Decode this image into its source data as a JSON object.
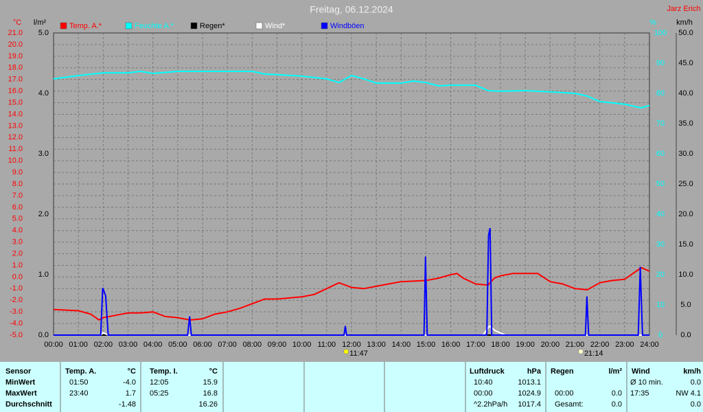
{
  "chart_data": {
    "type": "line",
    "title": "Freitag, 06.12.2024",
    "author": "Jarz Erich",
    "ylabel": "°C",
    "y2label": "l/m²",
    "y3label": "%",
    "y4label": "km/h",
    "xlim": [
      0,
      24
    ],
    "xticks": [
      {
        "value": 0,
        "label": "00:00"
      },
      {
        "value": 1,
        "label": "01:00"
      },
      {
        "value": 2,
        "label": "02:00"
      },
      {
        "value": 3,
        "label": "03:00"
      },
      {
        "value": 4,
        "label": "04:00"
      },
      {
        "value": 5,
        "label": "05:00"
      },
      {
        "value": 6,
        "label": "06:00"
      },
      {
        "value": 7,
        "label": "07:00"
      },
      {
        "value": 8,
        "label": "08:00"
      },
      {
        "value": 9,
        "label": "09:00"
      },
      {
        "value": 10,
        "label": "10:00"
      },
      {
        "value": 11,
        "label": "11:00"
      },
      {
        "value": 12,
        "label": "12:00"
      },
      {
        "value": 13,
        "label": "13:00"
      },
      {
        "value": 14,
        "label": "14:00"
      },
      {
        "value": 15,
        "label": "15:00"
      },
      {
        "value": 16,
        "label": "16:00"
      },
      {
        "value": 17,
        "label": "17:00"
      },
      {
        "value": 18,
        "label": "18:00"
      },
      {
        "value": 19,
        "label": "19:00"
      },
      {
        "value": 20,
        "label": "20:00"
      },
      {
        "value": 21,
        "label": "21:00"
      },
      {
        "value": 22,
        "label": "22:00"
      },
      {
        "value": 23,
        "label": "23:00"
      },
      {
        "value": 24,
        "label": "24:00"
      }
    ],
    "ylim": [
      -5,
      21
    ],
    "yticks": [
      {
        "value": 21,
        "label": "21.0"
      },
      {
        "value": 20,
        "label": "20.0"
      },
      {
        "value": 19,
        "label": "19.0"
      },
      {
        "value": 18,
        "label": "18.0"
      },
      {
        "value": 17,
        "label": "17.0"
      },
      {
        "value": 16,
        "label": "16.0"
      },
      {
        "value": 15,
        "label": "15.0"
      },
      {
        "value": 14,
        "label": "14.0"
      },
      {
        "value": 13,
        "label": "13.0"
      },
      {
        "value": 12,
        "label": "12.0"
      },
      {
        "value": 11,
        "label": "11.0"
      },
      {
        "value": 10,
        "label": "10.0"
      },
      {
        "value": 9,
        "label": "9.0"
      },
      {
        "value": 8,
        "label": "8.0"
      },
      {
        "value": 7,
        "label": "7.0"
      },
      {
        "value": 6,
        "label": "6.0"
      },
      {
        "value": 5,
        "label": "5.0"
      },
      {
        "value": 4,
        "label": "4.0"
      },
      {
        "value": 3,
        "label": "3.0"
      },
      {
        "value": 2,
        "label": "2.0"
      },
      {
        "value": 1,
        "label": "1.0"
      },
      {
        "value": 0,
        "label": "0.0"
      },
      {
        "value": -1,
        "label": "-1.0"
      },
      {
        "value": -2,
        "label": "-2.0"
      },
      {
        "value": -3,
        "label": "-3.0"
      },
      {
        "value": -4,
        "label": "-4.0"
      },
      {
        "value": -5,
        "label": "-5.0"
      }
    ],
    "y2lim": [
      0,
      5
    ],
    "y2ticks": [
      {
        "value": 5,
        "label": "5.0"
      },
      {
        "value": 4,
        "label": "4.0"
      },
      {
        "value": 3,
        "label": "3.0"
      },
      {
        "value": 2,
        "label": "2.0"
      },
      {
        "value": 1,
        "label": "1.0"
      },
      {
        "value": 0,
        "label": "0.0"
      }
    ],
    "y3lim": [
      0,
      100
    ],
    "y3ticks": [
      100,
      90,
      80,
      70,
      60,
      50,
      40,
      30,
      20,
      10,
      0
    ],
    "y4lim": [
      0,
      50
    ],
    "y4ticks": [
      {
        "value": 50,
        "label": "50.0"
      },
      {
        "value": 45,
        "label": "45.0"
      },
      {
        "value": 40,
        "label": "40.0"
      },
      {
        "value": 35,
        "label": "35.0"
      },
      {
        "value": 30,
        "label": "30.0"
      },
      {
        "value": 25,
        "label": "25.0"
      },
      {
        "value": 20,
        "label": "20.0"
      },
      {
        "value": 15,
        "label": "15.0"
      },
      {
        "value": 10,
        "label": "10.0"
      },
      {
        "value": 5,
        "label": "5.0"
      },
      {
        "value": 0,
        "label": "0.0"
      }
    ],
    "grid": true,
    "series": [
      {
        "name": "Temp. A.*",
        "color": "#ff0000",
        "axis": "y",
        "x": [
          0,
          1,
          1.5,
          1.83,
          2,
          2.5,
          3,
          3.5,
          4,
          4.5,
          5,
          5.5,
          6,
          6.5,
          7,
          7.5,
          8,
          8.5,
          9,
          10,
          10.5,
          11,
          11.5,
          12,
          12.5,
          13,
          13.5,
          14,
          15,
          15.5,
          16,
          16.25,
          16.5,
          17,
          17.5,
          17.75,
          18,
          18.5,
          19,
          19.5,
          20,
          20.5,
          21,
          21.5,
          22,
          22.5,
          23,
          23.67,
          24
        ],
        "values": [
          -2.8,
          -2.9,
          -3.2,
          -3.7,
          -3.5,
          -3.3,
          -3.1,
          -3.1,
          -3.0,
          -3.4,
          -3.5,
          -3.7,
          -3.6,
          -3.2,
          -3.0,
          -2.7,
          -2.3,
          -1.9,
          -1.9,
          -1.7,
          -1.5,
          -1.0,
          -0.5,
          -0.9,
          -1.0,
          -0.8,
          -0.6,
          -0.4,
          -0.3,
          -0.1,
          0.2,
          0.3,
          -0.1,
          -0.6,
          -0.7,
          -0.1,
          0.1,
          0.3,
          0.3,
          0.3,
          -0.4,
          -0.6,
          -1.0,
          -1.1,
          -0.5,
          -0.3,
          -0.2,
          0.8,
          0.5
        ]
      },
      {
        "name": "Feuchte A.*",
        "color": "#00ffff",
        "axis": "y3",
        "x": [
          0,
          1,
          2,
          3,
          3.5,
          4,
          5,
          6,
          7,
          8,
          8.5,
          9,
          10,
          11,
          11.5,
          12,
          12.5,
          13,
          14,
          14.5,
          15,
          15.5,
          16,
          17,
          17.5,
          18,
          19,
          20,
          21,
          21.5,
          22,
          23,
          23.67,
          24
        ],
        "values": [
          84.8,
          85.9,
          86.8,
          86.8,
          87.3,
          86.6,
          87.3,
          87.3,
          87.3,
          87.3,
          86.4,
          86.2,
          85.7,
          84.8,
          83.6,
          85.9,
          84.8,
          83.4,
          83.4,
          84.1,
          83.6,
          82.5,
          82.7,
          82.7,
          80.9,
          80.7,
          80.9,
          80.5,
          80.0,
          79.1,
          77.3,
          76.4,
          75.2,
          76.0
        ]
      },
      {
        "name": "Regen*",
        "color": "#000000",
        "axis": "y2",
        "x": [
          0,
          24
        ],
        "values": [
          0,
          0
        ]
      },
      {
        "name": "Wind*",
        "color": "#ffffff",
        "axis": "y4",
        "x": [
          0,
          1.9,
          2.0,
          2.2,
          17.3,
          17.55,
          17.8,
          18.2,
          24
        ],
        "values": [
          0,
          0,
          0.4,
          0,
          0,
          1.5,
          0.7,
          0,
          0
        ]
      },
      {
        "name": "Windböen",
        "color": "#0000ff",
        "axis": "y4",
        "x": [
          0,
          1.9,
          1.98,
          2.1,
          2.2,
          5.4,
          5.48,
          5.55,
          11.7,
          11.75,
          11.8,
          14.92,
          14.98,
          15.05,
          17.45,
          17.52,
          17.58,
          17.65,
          21.42,
          21.48,
          21.55,
          23.55,
          23.63,
          23.72,
          24
        ],
        "values": [
          0,
          0,
          7.8,
          6.5,
          0,
          0,
          3.1,
          0,
          0,
          1.5,
          0,
          0,
          13.0,
          0,
          0,
          16.5,
          17.7,
          0,
          0,
          6.4,
          0,
          0,
          11.3,
          0,
          0
        ]
      }
    ],
    "annotations": [
      "11:47",
      "21:14"
    ]
  },
  "table": {
    "left": {
      "header": [
        "Sensor",
        "Temp. A.",
        "°C",
        "Temp. I.",
        "°C"
      ],
      "rows": [
        [
          "MinWert",
          "01:50",
          "-4.0",
          "12:05",
          "15.9"
        ],
        [
          "MaxWert",
          "23:40",
          "1.7",
          "05:25",
          "16.8"
        ],
        [
          "Durchschnitt",
          null,
          "-1.48",
          null,
          "16.26"
        ]
      ]
    },
    "right": {
      "header": [
        "Luftdruck",
        "hPa",
        "Regen",
        "l/m²",
        "Wind",
        "km/h"
      ],
      "rows": [
        [
          "10:40",
          "1013.1",
          null,
          null,
          "Ø 10 min.",
          "0.0"
        ],
        [
          "00:00",
          "1024.9",
          "00:00",
          "0.0",
          "17:35",
          "NW 4.1"
        ],
        [
          "^2.2hPa/h",
          "1017.4",
          "Gesamt:",
          "0.0",
          null,
          "0.0"
        ]
      ]
    }
  }
}
